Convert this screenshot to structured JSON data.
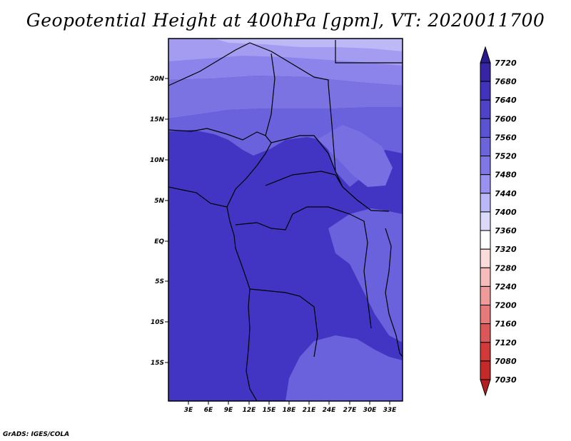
{
  "title": "Geopotential Height at 400hPa [gpm], VT: 2020011700",
  "credit": "GrADS: IGES/COLA",
  "map": {
    "lat_labels": [
      "20N",
      "15N",
      "10N",
      "5N",
      "EQ",
      "5S",
      "10S",
      "15S"
    ],
    "lon_labels": [
      "3E",
      "6E",
      "9E",
      "12E",
      "15E",
      "18E",
      "21E",
      "24E",
      "27E",
      "30E",
      "33E"
    ]
  },
  "colorbar": {
    "levels": [
      "7720",
      "7680",
      "7640",
      "7600",
      "7560",
      "7520",
      "7480",
      "7440",
      "7400",
      "7360",
      "7320",
      "7280",
      "7240",
      "7200",
      "7160",
      "7120",
      "7080",
      "7030"
    ],
    "colors": [
      "#2a1b8e",
      "#3626a6",
      "#4233bd",
      "#4e42c9",
      "#5b53d2",
      "#6b64db",
      "#8077e6",
      "#9b92ef",
      "#bcb7f6",
      "#dcdafb",
      "#ffffff",
      "#fbdcdc",
      "#f6bcbc",
      "#ef9b9b",
      "#e67a7a",
      "#dc5757",
      "#d23a3a",
      "#c42a2a",
      "#b41e1e"
    ]
  }
}
